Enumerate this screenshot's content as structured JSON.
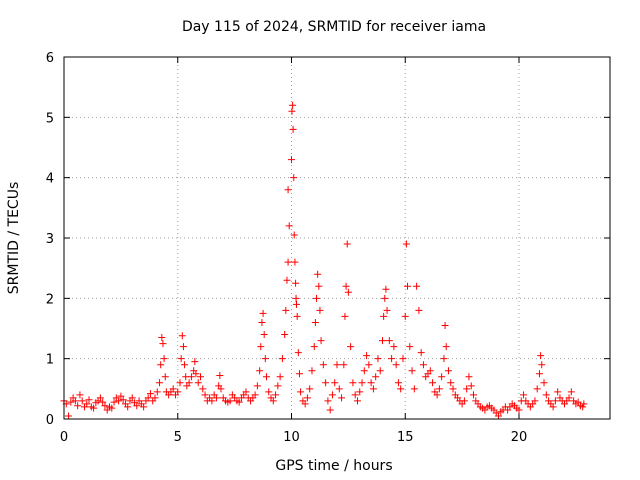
{
  "chart_data": {
    "type": "scatter",
    "title": "Day 115 of 2024, SRMTID for receiver iama",
    "xlabel": "GPS time / hours",
    "ylabel": "SRMTID / TECUs",
    "xlim": [
      0,
      24
    ],
    "ylim": [
      0,
      6
    ],
    "xticks": [
      0,
      5,
      10,
      15,
      20
    ],
    "yticks": [
      0,
      1,
      2,
      3,
      4,
      5,
      6
    ],
    "grid": true,
    "marker": "plus",
    "color": "#ff0000",
    "series": [
      {
        "name": "SRMTID",
        "points": [
          [
            0.0,
            0.3
          ],
          [
            0.1,
            0.25
          ],
          [
            0.2,
            0.05
          ],
          [
            0.3,
            0.28
          ],
          [
            0.4,
            0.35
          ],
          [
            0.5,
            0.3
          ],
          [
            0.6,
            0.22
          ],
          [
            0.7,
            0.4
          ],
          [
            0.8,
            0.3
          ],
          [
            0.9,
            0.2
          ],
          [
            1.0,
            0.25
          ],
          [
            1.1,
            0.32
          ],
          [
            1.2,
            0.2
          ],
          [
            1.3,
            0.18
          ],
          [
            1.4,
            0.27
          ],
          [
            1.5,
            0.3
          ],
          [
            1.6,
            0.35
          ],
          [
            1.7,
            0.28
          ],
          [
            1.8,
            0.22
          ],
          [
            1.9,
            0.15
          ],
          [
            2.0,
            0.2
          ],
          [
            2.1,
            0.18
          ],
          [
            2.2,
            0.28
          ],
          [
            2.3,
            0.35
          ],
          [
            2.4,
            0.3
          ],
          [
            2.5,
            0.38
          ],
          [
            2.6,
            0.32
          ],
          [
            2.7,
            0.25
          ],
          [
            2.8,
            0.2
          ],
          [
            2.9,
            0.3
          ],
          [
            3.0,
            0.35
          ],
          [
            3.1,
            0.27
          ],
          [
            3.2,
            0.22
          ],
          [
            3.3,
            0.3
          ],
          [
            3.4,
            0.25
          ],
          [
            3.5,
            0.2
          ],
          [
            3.6,
            0.3
          ],
          [
            3.7,
            0.35
          ],
          [
            3.8,
            0.42
          ],
          [
            3.9,
            0.3
          ],
          [
            4.0,
            0.35
          ],
          [
            4.1,
            0.45
          ],
          [
            4.2,
            0.6
          ],
          [
            4.25,
            0.9
          ],
          [
            4.3,
            1.35
          ],
          [
            4.35,
            1.25
          ],
          [
            4.4,
            1.0
          ],
          [
            4.45,
            0.7
          ],
          [
            4.5,
            0.45
          ],
          [
            4.6,
            0.4
          ],
          [
            4.7,
            0.45
          ],
          [
            4.8,
            0.5
          ],
          [
            4.9,
            0.4
          ],
          [
            5.0,
            0.45
          ],
          [
            5.1,
            0.6
          ],
          [
            5.15,
            1.0
          ],
          [
            5.2,
            1.38
          ],
          [
            5.25,
            1.2
          ],
          [
            5.3,
            0.9
          ],
          [
            5.35,
            0.7
          ],
          [
            5.4,
            0.55
          ],
          [
            5.5,
            0.6
          ],
          [
            5.6,
            0.7
          ],
          [
            5.7,
            0.8
          ],
          [
            5.75,
            0.95
          ],
          [
            5.8,
            0.75
          ],
          [
            5.9,
            0.6
          ],
          [
            6.0,
            0.7
          ],
          [
            6.1,
            0.5
          ],
          [
            6.2,
            0.4
          ],
          [
            6.3,
            0.3
          ],
          [
            6.4,
            0.35
          ],
          [
            6.5,
            0.3
          ],
          [
            6.6,
            0.4
          ],
          [
            6.7,
            0.35
          ],
          [
            6.8,
            0.55
          ],
          [
            6.85,
            0.72
          ],
          [
            6.9,
            0.5
          ],
          [
            7.0,
            0.35
          ],
          [
            7.1,
            0.3
          ],
          [
            7.2,
            0.28
          ],
          [
            7.3,
            0.3
          ],
          [
            7.4,
            0.4
          ],
          [
            7.5,
            0.35
          ],
          [
            7.6,
            0.3
          ],
          [
            7.7,
            0.28
          ],
          [
            7.8,
            0.35
          ],
          [
            7.9,
            0.4
          ],
          [
            8.0,
            0.45
          ],
          [
            8.1,
            0.35
          ],
          [
            8.2,
            0.3
          ],
          [
            8.3,
            0.35
          ],
          [
            8.4,
            0.4
          ],
          [
            8.5,
            0.55
          ],
          [
            8.6,
            0.8
          ],
          [
            8.65,
            1.2
          ],
          [
            8.7,
            1.6
          ],
          [
            8.75,
            1.75
          ],
          [
            8.8,
            1.4
          ],
          [
            8.85,
            1.0
          ],
          [
            8.9,
            0.7
          ],
          [
            9.0,
            0.45
          ],
          [
            9.1,
            0.35
          ],
          [
            9.2,
            0.3
          ],
          [
            9.3,
            0.4
          ],
          [
            9.4,
            0.55
          ],
          [
            9.5,
            0.7
          ],
          [
            9.6,
            1.0
          ],
          [
            9.7,
            1.4
          ],
          [
            9.75,
            1.8
          ],
          [
            9.8,
            2.3
          ],
          [
            9.85,
            2.6
          ],
          [
            9.9,
            3.2
          ],
          [
            9.85,
            3.8
          ],
          [
            10.0,
            4.3
          ],
          [
            10.02,
            5.1
          ],
          [
            10.05,
            5.2
          ],
          [
            10.07,
            4.8
          ],
          [
            10.1,
            4.0
          ],
          [
            10.12,
            3.05
          ],
          [
            10.15,
            2.6
          ],
          [
            10.18,
            2.25
          ],
          [
            10.2,
            2.0
          ],
          [
            10.22,
            1.9
          ],
          [
            10.25,
            1.7
          ],
          [
            10.3,
            1.1
          ],
          [
            10.35,
            0.75
          ],
          [
            10.4,
            0.45
          ],
          [
            10.5,
            0.3
          ],
          [
            10.6,
            0.25
          ],
          [
            10.7,
            0.35
          ],
          [
            10.8,
            0.5
          ],
          [
            10.9,
            0.8
          ],
          [
            11.0,
            1.2
          ],
          [
            11.05,
            1.6
          ],
          [
            11.1,
            2.0
          ],
          [
            11.15,
            2.4
          ],
          [
            11.2,
            2.2
          ],
          [
            11.25,
            1.8
          ],
          [
            11.3,
            1.3
          ],
          [
            11.4,
            0.9
          ],
          [
            11.5,
            0.6
          ],
          [
            11.6,
            0.3
          ],
          [
            11.7,
            0.15
          ],
          [
            11.8,
            0.4
          ],
          [
            11.9,
            0.6
          ],
          [
            12.0,
            0.9
          ],
          [
            12.1,
            0.5
          ],
          [
            12.2,
            0.35
          ],
          [
            12.3,
            0.9
          ],
          [
            12.35,
            1.7
          ],
          [
            12.4,
            2.2
          ],
          [
            12.45,
            2.9
          ],
          [
            12.5,
            2.1
          ],
          [
            12.6,
            1.2
          ],
          [
            12.7,
            0.6
          ],
          [
            12.8,
            0.4
          ],
          [
            12.9,
            0.3
          ],
          [
            13.0,
            0.45
          ],
          [
            13.1,
            0.6
          ],
          [
            13.2,
            0.8
          ],
          [
            13.3,
            1.05
          ],
          [
            13.4,
            0.9
          ],
          [
            13.5,
            0.6
          ],
          [
            13.6,
            0.5
          ],
          [
            13.7,
            0.7
          ],
          [
            13.8,
            1.0
          ],
          [
            13.9,
            0.8
          ],
          [
            14.0,
            1.3
          ],
          [
            14.05,
            1.7
          ],
          [
            14.1,
            2.0
          ],
          [
            14.15,
            2.15
          ],
          [
            14.2,
            1.8
          ],
          [
            14.3,
            1.3
          ],
          [
            14.4,
            1.0
          ],
          [
            14.5,
            1.2
          ],
          [
            14.6,
            0.9
          ],
          [
            14.7,
            0.6
          ],
          [
            14.8,
            0.5
          ],
          [
            14.9,
            1.0
          ],
          [
            15.0,
            1.7
          ],
          [
            15.05,
            2.9
          ],
          [
            15.1,
            2.2
          ],
          [
            15.2,
            1.2
          ],
          [
            15.3,
            0.8
          ],
          [
            15.4,
            0.5
          ],
          [
            15.5,
            2.2
          ],
          [
            15.6,
            1.8
          ],
          [
            15.7,
            1.1
          ],
          [
            15.8,
            0.9
          ],
          [
            15.9,
            0.7
          ],
          [
            16.0,
            0.75
          ],
          [
            16.1,
            0.8
          ],
          [
            16.2,
            0.6
          ],
          [
            16.3,
            0.45
          ],
          [
            16.4,
            0.4
          ],
          [
            16.5,
            0.5
          ],
          [
            16.6,
            0.7
          ],
          [
            16.7,
            1.0
          ],
          [
            16.75,
            1.55
          ],
          [
            16.8,
            1.2
          ],
          [
            16.9,
            0.8
          ],
          [
            17.0,
            0.6
          ],
          [
            17.1,
            0.5
          ],
          [
            17.2,
            0.4
          ],
          [
            17.3,
            0.35
          ],
          [
            17.4,
            0.3
          ],
          [
            17.5,
            0.25
          ],
          [
            17.6,
            0.3
          ],
          [
            17.7,
            0.5
          ],
          [
            17.8,
            0.7
          ],
          [
            17.9,
            0.55
          ],
          [
            18.0,
            0.4
          ],
          [
            18.1,
            0.3
          ],
          [
            18.2,
            0.25
          ],
          [
            18.3,
            0.2
          ],
          [
            18.4,
            0.18
          ],
          [
            18.5,
            0.15
          ],
          [
            18.6,
            0.2
          ],
          [
            18.7,
            0.22
          ],
          [
            18.8,
            0.18
          ],
          [
            18.9,
            0.15
          ],
          [
            19.0,
            0.1
          ],
          [
            19.1,
            0.05
          ],
          [
            19.2,
            0.12
          ],
          [
            19.3,
            0.15
          ],
          [
            19.4,
            0.2
          ],
          [
            19.5,
            0.15
          ],
          [
            19.6,
            0.2
          ],
          [
            19.7,
            0.25
          ],
          [
            19.8,
            0.22
          ],
          [
            19.9,
            0.18
          ],
          [
            20.0,
            0.15
          ],
          [
            20.1,
            0.3
          ],
          [
            20.2,
            0.4
          ],
          [
            20.3,
            0.3
          ],
          [
            20.4,
            0.25
          ],
          [
            20.5,
            0.2
          ],
          [
            20.6,
            0.25
          ],
          [
            20.7,
            0.3
          ],
          [
            20.8,
            0.5
          ],
          [
            20.9,
            0.75
          ],
          [
            20.95,
            1.05
          ],
          [
            21.0,
            0.9
          ],
          [
            21.1,
            0.6
          ],
          [
            21.2,
            0.4
          ],
          [
            21.3,
            0.3
          ],
          [
            21.4,
            0.25
          ],
          [
            21.5,
            0.2
          ],
          [
            21.6,
            0.3
          ],
          [
            21.7,
            0.45
          ],
          [
            21.8,
            0.35
          ],
          [
            21.9,
            0.3
          ],
          [
            22.0,
            0.25
          ],
          [
            22.1,
            0.3
          ],
          [
            22.2,
            0.35
          ],
          [
            22.3,
            0.45
          ],
          [
            22.4,
            0.3
          ],
          [
            22.5,
            0.25
          ],
          [
            22.6,
            0.28
          ],
          [
            22.7,
            0.22
          ],
          [
            22.8,
            0.2
          ],
          [
            22.85,
            0.25
          ]
        ]
      }
    ]
  }
}
